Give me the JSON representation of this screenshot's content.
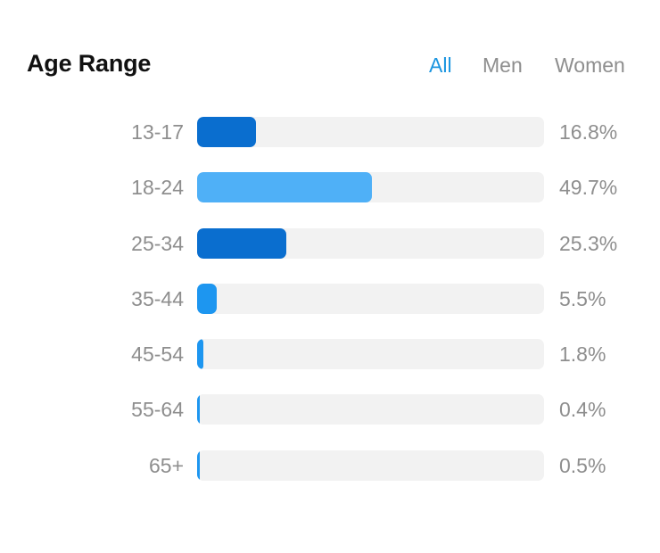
{
  "header": {
    "title": "Age Range",
    "tabs": [
      {
        "label": "All",
        "active": true
      },
      {
        "label": "Men",
        "active": false
      },
      {
        "label": "Women",
        "active": false
      }
    ]
  },
  "colors": {
    "accent": "#1b95e0",
    "bar_dark": "#0a6ecf",
    "bar_light": "#4fb0f7",
    "bar_mid": "#1d96f0",
    "track": "#f2f2f2",
    "label": "#8e8e8e"
  },
  "chart_data": {
    "type": "bar",
    "orientation": "horizontal",
    "title": "Age Range",
    "categories": [
      "13-17",
      "18-24",
      "25-34",
      "35-44",
      "45-54",
      "55-64",
      "65+"
    ],
    "values": [
      16.8,
      49.7,
      25.3,
      5.5,
      1.8,
      0.4,
      0.5
    ],
    "value_labels": [
      "16.8%",
      "49.7%",
      "25.3%",
      "5.5%",
      "1.8%",
      "0.4%",
      "0.5%"
    ],
    "bar_colors": [
      "#0a6ecf",
      "#4fb0f7",
      "#0a6ecf",
      "#1d96f0",
      "#1d96f0",
      "#1d96f0",
      "#1d96f0"
    ],
    "xlim": [
      0,
      100
    ],
    "grid": false,
    "legend": "none"
  }
}
